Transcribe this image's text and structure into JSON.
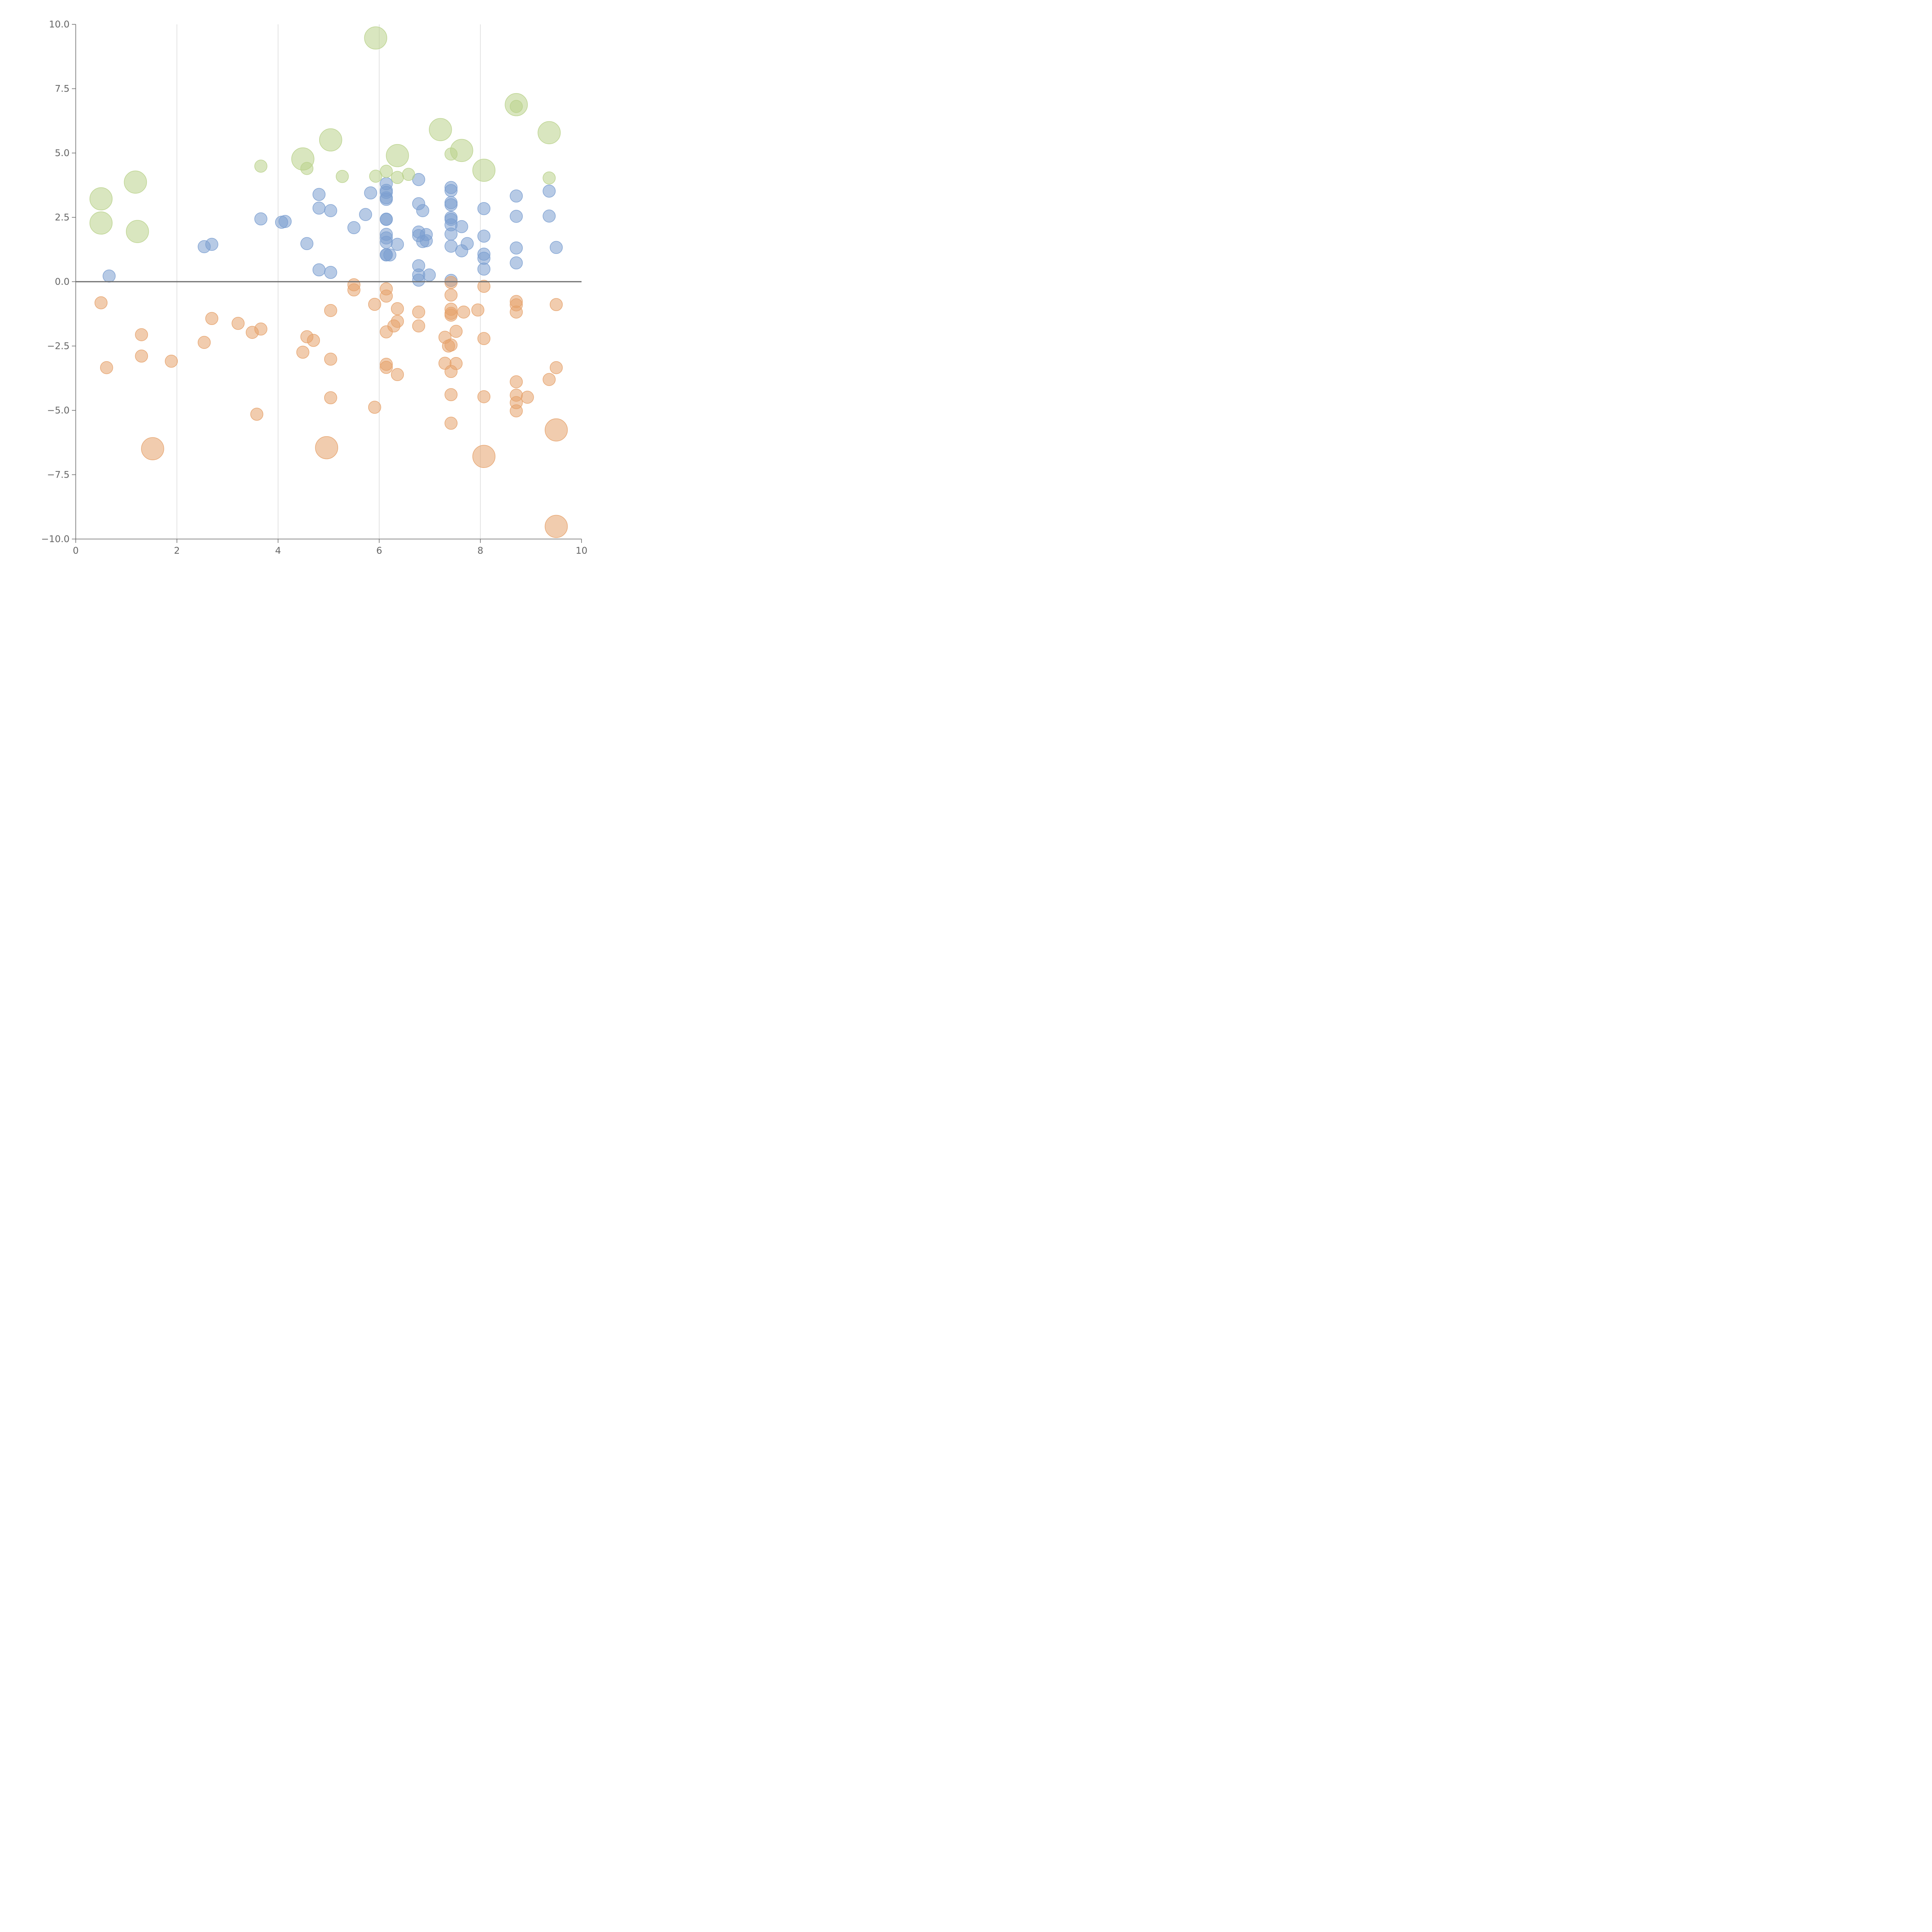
{
  "colors": {
    "blue": "#7b9fd0",
    "orange": "#e6a26c",
    "green": "#b9d28b",
    "axis": "#666666",
    "grid": "#d0d0d0",
    "zero_line": "#6d6d6d"
  },
  "chart_data": {
    "type": "scatter",
    "title": "",
    "xlabel": "",
    "ylabel": "",
    "xlim": [
      0,
      10
    ],
    "ylim": [
      -10,
      10
    ],
    "x_ticks": [
      0,
      2,
      4,
      6,
      8,
      10
    ],
    "x_tick_labels": [
      "0",
      "2",
      "4",
      "6",
      "8",
      "10"
    ],
    "y_ticks": [
      10,
      7.5,
      5,
      2.5,
      0,
      -2.5,
      -5,
      -7.5,
      -10
    ],
    "y_tick_labels": [
      "10.0",
      "7.5",
      "5.0",
      "2.5",
      "0.0",
      "−2.5",
      "−5.0",
      "−7.5",
      "−10.0"
    ],
    "x_grid": [
      2,
      4,
      6,
      8
    ],
    "reference_line_y": 0,
    "legend": "none",
    "size_scale": "small = 1, large = 2 (relative bubble radius)",
    "series": [
      {
        "name": "blue",
        "color_key": "blue",
        "points": [
          {
            "x": 0.66,
            "y": 0.22,
            "s": 1
          },
          {
            "x": 2.54,
            "y": 1.36,
            "s": 1
          },
          {
            "x": 2.69,
            "y": 1.45,
            "s": 1
          },
          {
            "x": 3.66,
            "y": 2.44,
            "s": 1
          },
          {
            "x": 4.07,
            "y": 2.31,
            "s": 1
          },
          {
            "x": 4.14,
            "y": 2.34,
            "s": 1
          },
          {
            "x": 4.57,
            "y": 1.48,
            "s": 1
          },
          {
            "x": 4.81,
            "y": 3.39,
            "s": 1
          },
          {
            "x": 4.81,
            "y": 2.86,
            "s": 1
          },
          {
            "x": 4.81,
            "y": 0.46,
            "s": 1
          },
          {
            "x": 5.04,
            "y": 2.76,
            "s": 1
          },
          {
            "x": 5.04,
            "y": 0.36,
            "s": 1
          },
          {
            "x": 5.5,
            "y": 2.1,
            "s": 1
          },
          {
            "x": 5.73,
            "y": 2.61,
            "s": 1
          },
          {
            "x": 5.83,
            "y": 3.45,
            "s": 1
          },
          {
            "x": 6.14,
            "y": 3.81,
            "s": 1
          },
          {
            "x": 6.14,
            "y": 3.55,
            "s": 1
          },
          {
            "x": 6.14,
            "y": 3.47,
            "s": 1
          },
          {
            "x": 6.14,
            "y": 3.26,
            "s": 1
          },
          {
            "x": 6.14,
            "y": 3.2,
            "s": 1
          },
          {
            "x": 6.14,
            "y": 2.43,
            "s": 1
          },
          {
            "x": 6.14,
            "y": 2.42,
            "s": 1
          },
          {
            "x": 6.14,
            "y": 1.84,
            "s": 1
          },
          {
            "x": 6.14,
            "y": 1.7,
            "s": 1
          },
          {
            "x": 6.14,
            "y": 1.53,
            "s": 1
          },
          {
            "x": 6.14,
            "y": 1.05,
            "s": 1
          },
          {
            "x": 6.14,
            "y": 1.04,
            "s": 1
          },
          {
            "x": 6.21,
            "y": 1.04,
            "s": 1
          },
          {
            "x": 6.36,
            "y": 1.45,
            "s": 1
          },
          {
            "x": 6.78,
            "y": 3.97,
            "s": 1
          },
          {
            "x": 6.78,
            "y": 3.03,
            "s": 1
          },
          {
            "x": 6.78,
            "y": 1.93,
            "s": 1
          },
          {
            "x": 6.78,
            "y": 1.79,
            "s": 1
          },
          {
            "x": 6.78,
            "y": 0.62,
            "s": 1
          },
          {
            "x": 6.78,
            "y": 0.26,
            "s": 1
          },
          {
            "x": 6.78,
            "y": 0.06,
            "s": 1
          },
          {
            "x": 6.86,
            "y": 2.76,
            "s": 1
          },
          {
            "x": 6.86,
            "y": 1.56,
            "s": 1
          },
          {
            "x": 6.93,
            "y": 1.83,
            "s": 1
          },
          {
            "x": 6.93,
            "y": 1.59,
            "s": 1
          },
          {
            "x": 6.99,
            "y": 0.26,
            "s": 1
          },
          {
            "x": 7.42,
            "y": 3.66,
            "s": 1
          },
          {
            "x": 7.42,
            "y": 3.54,
            "s": 1
          },
          {
            "x": 7.42,
            "y": 3.07,
            "s": 1
          },
          {
            "x": 7.42,
            "y": 2.99,
            "s": 1
          },
          {
            "x": 7.42,
            "y": 2.49,
            "s": 1
          },
          {
            "x": 7.42,
            "y": 2.42,
            "s": 1
          },
          {
            "x": 7.42,
            "y": 2.21,
            "s": 1
          },
          {
            "x": 7.42,
            "y": 1.85,
            "s": 1
          },
          {
            "x": 7.42,
            "y": 1.38,
            "s": 1
          },
          {
            "x": 7.42,
            "y": 0.05,
            "s": 1
          },
          {
            "x": 7.63,
            "y": 2.14,
            "s": 1
          },
          {
            "x": 7.63,
            "y": 1.2,
            "s": 1
          },
          {
            "x": 7.74,
            "y": 1.48,
            "s": 1
          },
          {
            "x": 8.07,
            "y": 2.84,
            "s": 1
          },
          {
            "x": 8.07,
            "y": 1.77,
            "s": 1
          },
          {
            "x": 8.07,
            "y": 1.07,
            "s": 1
          },
          {
            "x": 8.07,
            "y": 0.91,
            "s": 1
          },
          {
            "x": 8.07,
            "y": 0.49,
            "s": 1
          },
          {
            "x": 8.71,
            "y": 3.33,
            "s": 1
          },
          {
            "x": 8.71,
            "y": 2.54,
            "s": 1
          },
          {
            "x": 8.71,
            "y": 1.31,
            "s": 1
          },
          {
            "x": 8.71,
            "y": 0.73,
            "s": 1
          },
          {
            "x": 9.36,
            "y": 3.52,
            "s": 1
          },
          {
            "x": 9.36,
            "y": 2.55,
            "s": 1
          },
          {
            "x": 9.5,
            "y": 1.33,
            "s": 1
          }
        ]
      },
      {
        "name": "orange",
        "color_key": "orange",
        "points": [
          {
            "x": 0.5,
            "y": -0.82,
            "s": 1
          },
          {
            "x": 0.61,
            "y": -3.34,
            "s": 1
          },
          {
            "x": 1.3,
            "y": -2.06,
            "s": 1
          },
          {
            "x": 1.3,
            "y": -2.89,
            "s": 1
          },
          {
            "x": 1.89,
            "y": -3.09,
            "s": 1
          },
          {
            "x": 1.52,
            "y": -6.49,
            "s": 2
          },
          {
            "x": 2.54,
            "y": -2.36,
            "s": 1
          },
          {
            "x": 2.69,
            "y": -1.43,
            "s": 1
          },
          {
            "x": 3.21,
            "y": -1.62,
            "s": 1
          },
          {
            "x": 3.49,
            "y": -1.97,
            "s": 1
          },
          {
            "x": 3.66,
            "y": -1.84,
            "s": 1
          },
          {
            "x": 3.58,
            "y": -5.15,
            "s": 1
          },
          {
            "x": 4.49,
            "y": -2.74,
            "s": 1
          },
          {
            "x": 4.57,
            "y": -2.14,
            "s": 1
          },
          {
            "x": 4.7,
            "y": -2.28,
            "s": 1
          },
          {
            "x": 5.04,
            "y": -1.12,
            "s": 1
          },
          {
            "x": 5.04,
            "y": -3.01,
            "s": 1
          },
          {
            "x": 5.04,
            "y": -4.51,
            "s": 1
          },
          {
            "x": 4.96,
            "y": -6.45,
            "s": 2
          },
          {
            "x": 5.5,
            "y": -0.12,
            "s": 1
          },
          {
            "x": 5.5,
            "y": -0.32,
            "s": 1
          },
          {
            "x": 5.91,
            "y": -0.88,
            "s": 1
          },
          {
            "x": 5.91,
            "y": -4.88,
            "s": 1
          },
          {
            "x": 6.14,
            "y": -0.28,
            "s": 1
          },
          {
            "x": 6.14,
            "y": -0.56,
            "s": 1
          },
          {
            "x": 6.14,
            "y": -1.95,
            "s": 1
          },
          {
            "x": 6.14,
            "y": -3.21,
            "s": 1
          },
          {
            "x": 6.14,
            "y": -3.33,
            "s": 1
          },
          {
            "x": 6.29,
            "y": -1.72,
            "s": 1
          },
          {
            "x": 6.36,
            "y": -1.05,
            "s": 1
          },
          {
            "x": 6.36,
            "y": -1.54,
            "s": 1
          },
          {
            "x": 6.36,
            "y": -3.61,
            "s": 1
          },
          {
            "x": 6.78,
            "y": -1.18,
            "s": 1
          },
          {
            "x": 6.78,
            "y": -1.72,
            "s": 1
          },
          {
            "x": 7.3,
            "y": -2.16,
            "s": 1
          },
          {
            "x": 7.3,
            "y": -3.17,
            "s": 1
          },
          {
            "x": 7.37,
            "y": -2.5,
            "s": 1
          },
          {
            "x": 7.42,
            "y": -2.46,
            "s": 1
          },
          {
            "x": 7.42,
            "y": -0.03,
            "s": 1
          },
          {
            "x": 7.42,
            "y": -0.52,
            "s": 1
          },
          {
            "x": 7.42,
            "y": -1.07,
            "s": 1
          },
          {
            "x": 7.42,
            "y": -1.23,
            "s": 1
          },
          {
            "x": 7.42,
            "y": -1.3,
            "s": 1
          },
          {
            "x": 7.42,
            "y": -3.49,
            "s": 1
          },
          {
            "x": 7.42,
            "y": -4.39,
            "s": 1
          },
          {
            "x": 7.42,
            "y": -5.5,
            "s": 1
          },
          {
            "x": 7.52,
            "y": -1.93,
            "s": 1
          },
          {
            "x": 7.52,
            "y": -3.18,
            "s": 1
          },
          {
            "x": 7.67,
            "y": -1.18,
            "s": 1
          },
          {
            "x": 7.95,
            "y": -1.1,
            "s": 1
          },
          {
            "x": 8.07,
            "y": -0.18,
            "s": 1
          },
          {
            "x": 8.07,
            "y": -2.21,
            "s": 1
          },
          {
            "x": 8.07,
            "y": -4.47,
            "s": 1
          },
          {
            "x": 8.07,
            "y": -6.79,
            "s": 2
          },
          {
            "x": 8.71,
            "y": -0.77,
            "s": 1
          },
          {
            "x": 8.71,
            "y": -0.9,
            "s": 1
          },
          {
            "x": 8.71,
            "y": -1.18,
            "s": 1
          },
          {
            "x": 8.71,
            "y": -3.89,
            "s": 1
          },
          {
            "x": 8.71,
            "y": -4.41,
            "s": 1
          },
          {
            "x": 8.71,
            "y": -4.7,
            "s": 1
          },
          {
            "x": 8.71,
            "y": -5.02,
            "s": 1
          },
          {
            "x": 8.93,
            "y": -4.49,
            "s": 1
          },
          {
            "x": 9.36,
            "y": -3.8,
            "s": 1
          },
          {
            "x": 9.5,
            "y": -0.89,
            "s": 1
          },
          {
            "x": 9.5,
            "y": -3.34,
            "s": 1
          },
          {
            "x": 9.5,
            "y": -5.76,
            "s": 2
          },
          {
            "x": 9.5,
            "y": -9.51,
            "s": 2
          }
        ]
      },
      {
        "name": "green",
        "color_key": "green",
        "points": [
          {
            "x": 0.5,
            "y": 3.22,
            "s": 2
          },
          {
            "x": 0.5,
            "y": 2.28,
            "s": 2
          },
          {
            "x": 1.18,
            "y": 3.87,
            "s": 2
          },
          {
            "x": 1.22,
            "y": 1.95,
            "s": 2
          },
          {
            "x": 3.66,
            "y": 4.49,
            "s": 1
          },
          {
            "x": 4.49,
            "y": 4.77,
            "s": 2
          },
          {
            "x": 4.57,
            "y": 4.4,
            "s": 1
          },
          {
            "x": 5.04,
            "y": 5.51,
            "s": 2
          },
          {
            "x": 5.27,
            "y": 4.09,
            "s": 1
          },
          {
            "x": 5.93,
            "y": 9.47,
            "s": 2
          },
          {
            "x": 5.93,
            "y": 4.1,
            "s": 1
          },
          {
            "x": 6.14,
            "y": 4.29,
            "s": 1
          },
          {
            "x": 6.36,
            "y": 4.05,
            "s": 1
          },
          {
            "x": 6.36,
            "y": 4.9,
            "s": 2
          },
          {
            "x": 6.58,
            "y": 4.17,
            "s": 1
          },
          {
            "x": 7.21,
            "y": 5.91,
            "s": 2
          },
          {
            "x": 7.42,
            "y": 4.96,
            "s": 1
          },
          {
            "x": 7.63,
            "y": 5.1,
            "s": 2
          },
          {
            "x": 8.07,
            "y": 4.33,
            "s": 2
          },
          {
            "x": 8.71,
            "y": 6.88,
            "s": 2
          },
          {
            "x": 8.71,
            "y": 6.81,
            "s": 1
          },
          {
            "x": 9.36,
            "y": 5.79,
            "s": 2
          },
          {
            "x": 9.36,
            "y": 4.03,
            "s": 1
          }
        ]
      }
    ]
  }
}
